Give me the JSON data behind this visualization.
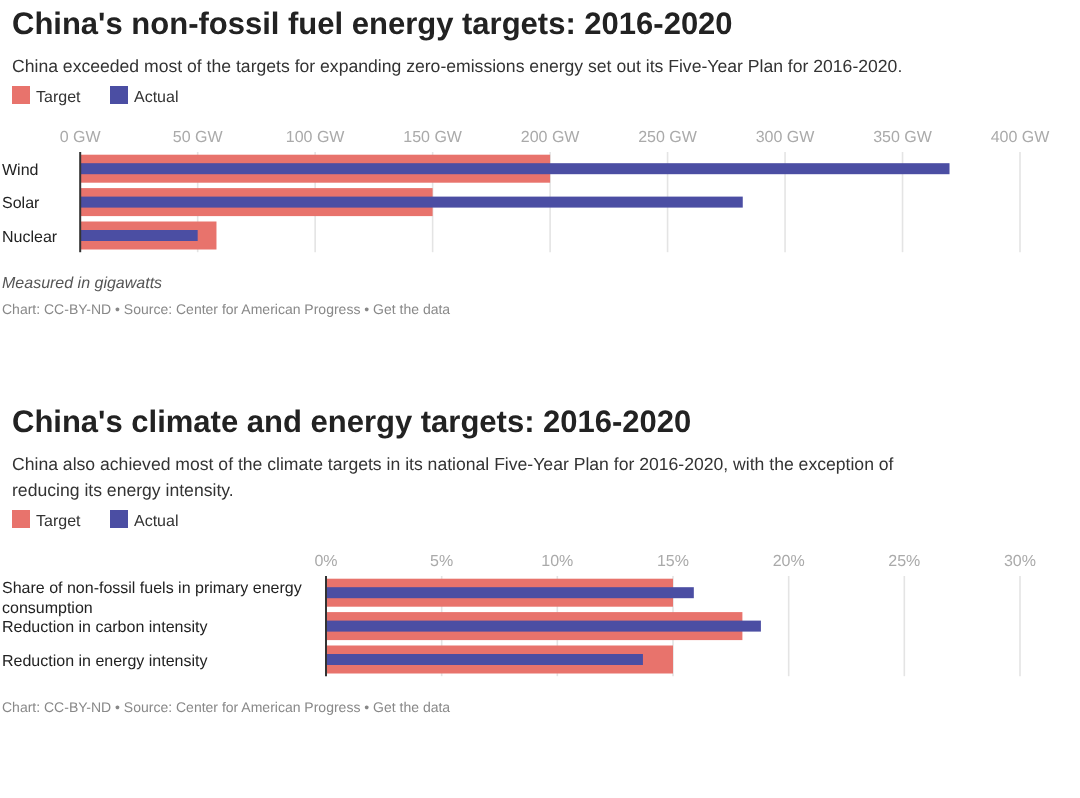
{
  "chart_data": [
    {
      "type": "bar",
      "orientation": "horizontal",
      "title": "China's non-fossil fuel energy targets: 2016-2020",
      "subtitle": "China exceeded most of the targets for expanding zero-emissions energy set out its Five-Year Plan for 2016-2020.",
      "categories": [
        "Wind",
        "Solar",
        "Nuclear"
      ],
      "series": [
        {
          "name": "Target",
          "color": "#e8736c",
          "values": [
            200,
            150,
            58
          ]
        },
        {
          "name": "Actual",
          "color": "#4b4ea3",
          "values": [
            370,
            282,
            50
          ]
        }
      ],
      "xlim": [
        0,
        400
      ],
      "xticks": [
        {
          "value": 0,
          "label": "0 GW"
        },
        {
          "value": 50,
          "label": "50 GW"
        },
        {
          "value": 100,
          "label": "100 GW"
        },
        {
          "value": 150,
          "label": "150 GW"
        },
        {
          "value": 200,
          "label": "200 GW"
        },
        {
          "value": 250,
          "label": "250 GW"
        },
        {
          "value": 300,
          "label": "300 GW"
        },
        {
          "value": 350,
          "label": "350 GW"
        },
        {
          "value": 400,
          "label": "400 GW"
        }
      ],
      "grid": "x",
      "legend": "top left",
      "annotations": [
        "Measured in gigawatts",
        "Chart: CC-BY-ND • Source: Center for American Progress • Get the data"
      ]
    },
    {
      "type": "bar",
      "orientation": "horizontal",
      "title": "China's climate and energy targets: 2016-2020",
      "subtitle": "China also achieved most of the climate targets in its national Five-Year Plan for 2016-2020, with the exception of reducing its energy intensity.",
      "categories": [
        "Share of non-fossil fuels in primary energy consumption",
        "Reduction in carbon intensity",
        "Reduction in energy intensity"
      ],
      "series": [
        {
          "name": "Target",
          "color": "#e8736c",
          "values": [
            15,
            18,
            15
          ]
        },
        {
          "name": "Actual",
          "color": "#4b4ea3",
          "values": [
            15.9,
            18.8,
            13.7
          ]
        }
      ],
      "xlim": [
        0,
        30
      ],
      "xticks": [
        {
          "value": 0,
          "label": "0%"
        },
        {
          "value": 5,
          "label": "5%"
        },
        {
          "value": 10,
          "label": "10%"
        },
        {
          "value": 15,
          "label": "15%"
        },
        {
          "value": 20,
          "label": "20%"
        },
        {
          "value": 25,
          "label": "25%"
        },
        {
          "value": 30,
          "label": "30%"
        }
      ],
      "grid": "x",
      "legend": "top left",
      "annotations": [
        "Chart: CC-BY-ND • Source: Center for American Progress • Get the data"
      ]
    }
  ]
}
